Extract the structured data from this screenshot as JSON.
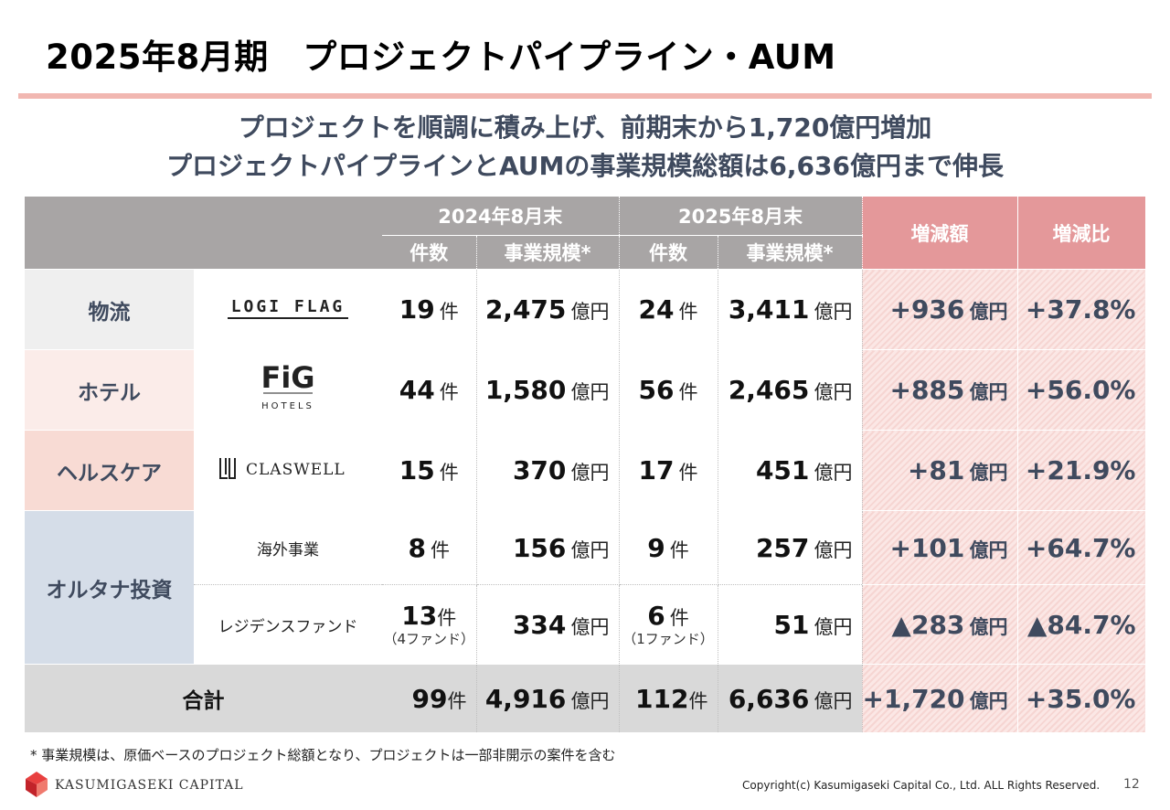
{
  "title": "2025年8月期　プロジェクトパイプライン・AUM",
  "subtitle_line1": "プロジェクトを順調に積み上げ、前期末から1,720億円増加",
  "subtitle_line2": "プロジェクトパイプラインとAUMの事業規模総額は6,636億円まで伸長",
  "table": {
    "header": {
      "year_2024": "2024年8月末",
      "year_2025": "2025年8月末",
      "count": "件数",
      "scale": "事業規模*",
      "change_amount": "増減額",
      "change_ratio": "増減比"
    },
    "units": {
      "count": "件",
      "amount": "億円"
    },
    "rows": [
      {
        "segment": "物流",
        "brand": "LOGI FLAG",
        "c24": "19",
        "s24": "2,475",
        "c25": "24",
        "s25": "3,411",
        "diff": "+936",
        "ratio": "+37.8%"
      },
      {
        "segment": "ホテル",
        "brand": "FiG",
        "brand_sub": "HOTELS",
        "c24": "44",
        "s24": "1,580",
        "c25": "56",
        "s25": "2,465",
        "diff": "+885",
        "ratio": "+56.0%"
      },
      {
        "segment": "ヘルスケア",
        "brand": "CLASWELL",
        "c24": "15",
        "s24": "370",
        "c25": "17",
        "s25": "451",
        "diff": "+81",
        "ratio": "+21.9%"
      },
      {
        "segment": "オルタナ投資",
        "brand": "海外事業",
        "c24": "8",
        "s24": "156",
        "c25": "9",
        "s25": "257",
        "diff": "+101",
        "ratio": "+64.7%"
      },
      {
        "brand": "レジデンスファンド",
        "c24": "13",
        "c24_note": "（4ファンド）",
        "s24": "334",
        "c25": "6",
        "c25_note": "（1ファンド）",
        "s25": "51",
        "diff": "▲283",
        "ratio": "▲84.7%"
      }
    ],
    "total": {
      "label": "合計",
      "c24": "99",
      "s24": "4,916",
      "c25": "112",
      "s25": "6,636",
      "diff": "+1,720",
      "ratio": "+35.0%"
    }
  },
  "footnote": "* 事業規模は、原価ベースのプロジェクト総額となり、プロジェクトは一部非開示の案件を含む",
  "company": "KASUMIGASEKI CAPITAL",
  "copyright": "Copyright(c) Kasumigaseki Capital Co., Ltd. ALL Rights Reserved.",
  "page_number": "12",
  "colors": {
    "accent_rule": "#f1b7b1",
    "header_gray": "#a8a5a5",
    "header_red": "#e4989a",
    "text_navy": "#3f4a5e"
  }
}
